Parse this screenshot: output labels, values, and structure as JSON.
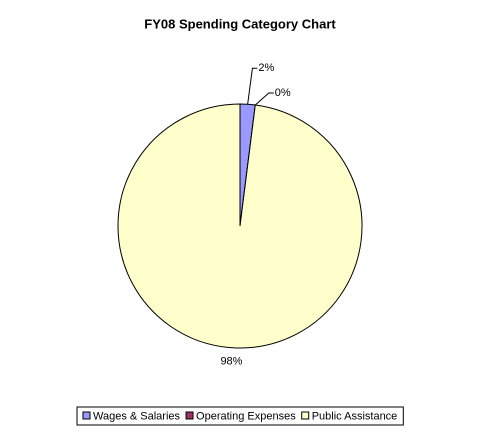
{
  "chart_data": {
    "type": "pie",
    "title": "FY08 Spending Category Chart",
    "categories": [
      "Wages & Salaries",
      "Operating Expenses",
      "Public Assistance"
    ],
    "values": [
      2,
      0,
      98
    ],
    "value_labels": [
      "2%",
      "0%",
      "98%"
    ],
    "colors": [
      "#9999ff",
      "#993366",
      "#ffffcc"
    ],
    "legend": "bottom"
  }
}
